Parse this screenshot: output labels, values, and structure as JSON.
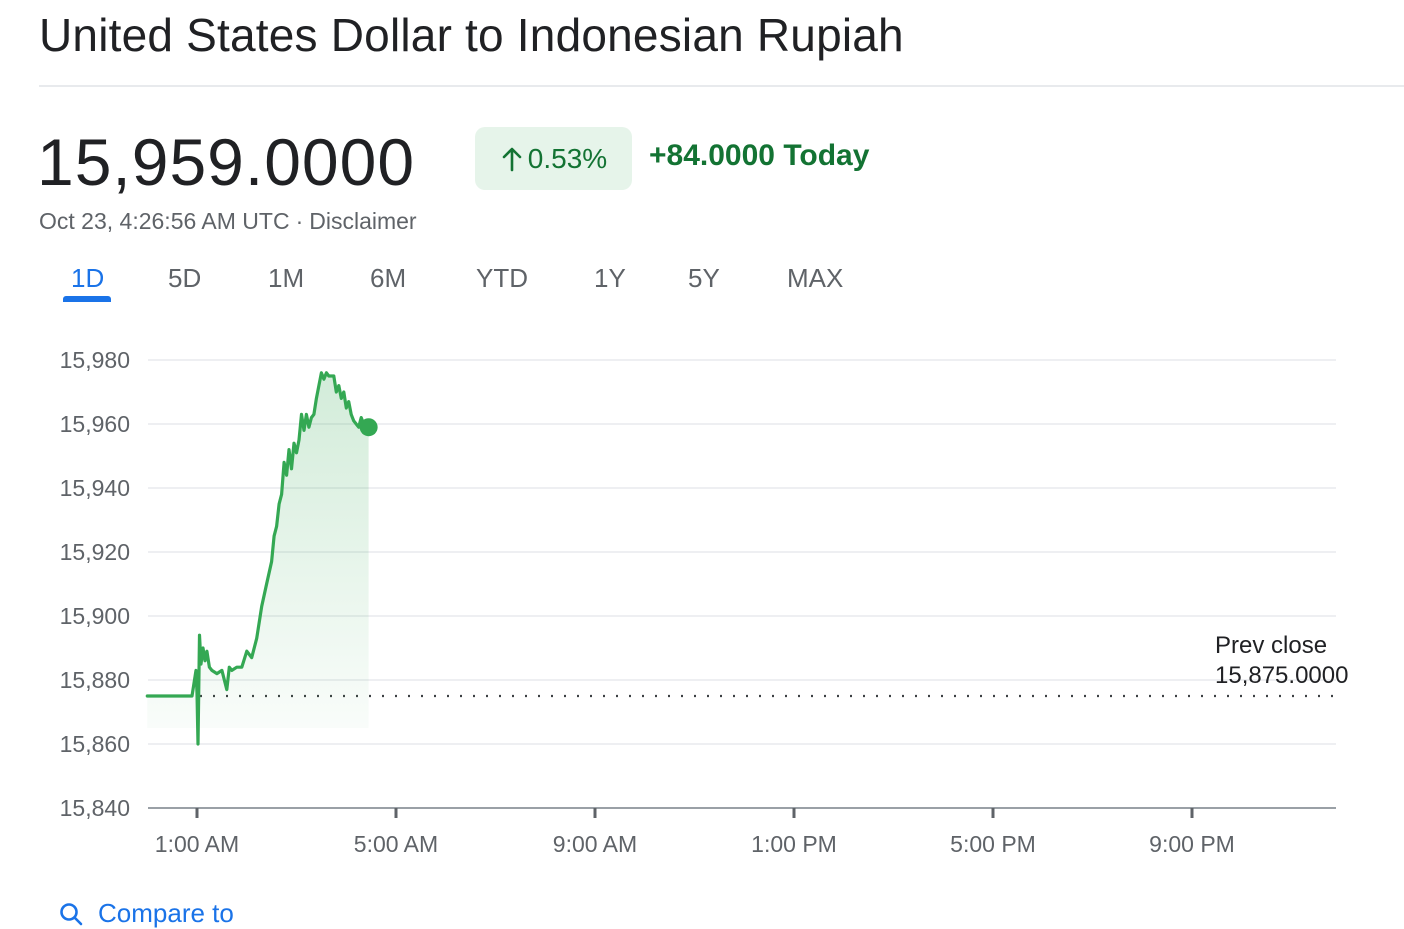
{
  "header": {
    "title": "United States Dollar to Indonesian Rupiah"
  },
  "quote": {
    "price": "15,959.0000",
    "change_percent": "0.53%",
    "change_abs": "+84.0000",
    "change_suffix": "Today",
    "timestamp": "Oct 23, 4:26:56 AM UTC",
    "separator": "·",
    "disclaimer": "Disclaimer"
  },
  "tabs": [
    {
      "label": "1D",
      "active": true
    },
    {
      "label": "5D",
      "active": false
    },
    {
      "label": "1M",
      "active": false
    },
    {
      "label": "6M",
      "active": false
    },
    {
      "label": "YTD",
      "active": false
    },
    {
      "label": "1Y",
      "active": false
    },
    {
      "label": "5Y",
      "active": false
    },
    {
      "label": "MAX",
      "active": false
    }
  ],
  "colors": {
    "up_green": "#137333",
    "line_green": "#34a853",
    "accent_blue": "#1a73e8",
    "pill_bg": "#e6f4ea"
  },
  "icons": {
    "change_arrow": "arrow-up-icon",
    "compare": "search-icon"
  },
  "compare": {
    "label": "Compare to"
  },
  "chart_data": {
    "type": "line",
    "title": "",
    "xlabel": "",
    "ylabel": "",
    "ylim": [
      15840,
      15980
    ],
    "yticks": [
      "15,980",
      "15,960",
      "15,940",
      "15,920",
      "15,900",
      "15,880",
      "15,860",
      "15,840"
    ],
    "ytick_values": [
      15980,
      15960,
      15940,
      15920,
      15900,
      15880,
      15860,
      15840
    ],
    "xticks": [
      "1:00 AM",
      "5:00 AM",
      "9:00 AM",
      "1:00 PM",
      "5:00 PM",
      "9:00 PM"
    ],
    "xtick_hours": [
      1,
      5,
      9,
      13,
      17,
      21
    ],
    "xlim_hours": [
      0,
      24
    ],
    "grid": true,
    "prev_close": {
      "label": "Prev close",
      "value_text": "15,875.0000",
      "value": 15875
    },
    "series": [
      {
        "x_hours": [
          0,
          0.9,
          0.95,
          0.98,
          1.0,
          1.02,
          1.05,
          1.08,
          1.12,
          1.16,
          1.2,
          1.25,
          1.3,
          1.4,
          1.5,
          1.6,
          1.65,
          1.7,
          1.8,
          1.9,
          2.0,
          2.1,
          2.2,
          2.3,
          2.4,
          2.5,
          2.55,
          2.6,
          2.65,
          2.7,
          2.75,
          2.8,
          2.85,
          2.9,
          2.95,
          3.0,
          3.05,
          3.1,
          3.15,
          3.2,
          3.25,
          3.3,
          3.35,
          3.4,
          3.45,
          3.5,
          3.55,
          3.6,
          3.65,
          3.7,
          3.75,
          3.8,
          3.85,
          3.9,
          3.95,
          4.0,
          4.05,
          4.1,
          4.15,
          4.2,
          4.25,
          4.3,
          4.35,
          4.4,
          4.45
        ],
        "values": [
          15875,
          15875,
          15880,
          15883,
          15876,
          15860,
          15894,
          15885,
          15890,
          15886,
          15889,
          15884,
          15883,
          15882,
          15883,
          15877,
          15884,
          15883,
          15884,
          15884,
          15889,
          15887,
          15893,
          15903,
          15910,
          15917,
          15925,
          15928,
          15935,
          15938,
          15948,
          15944,
          15952,
          15946,
          15954,
          15951,
          15955,
          15963,
          15958,
          15963,
          15959,
          15962,
          15963,
          15968,
          15972,
          15976,
          15974,
          15976,
          15975,
          15975,
          15975,
          15970,
          15972,
          15968,
          15970,
          15965,
          15967,
          15963,
          15961,
          15960,
          15959,
          15962,
          15960,
          15959,
          15959
        ]
      }
    ],
    "current": {
      "x_hours": 4.45,
      "value": 15959
    }
  }
}
